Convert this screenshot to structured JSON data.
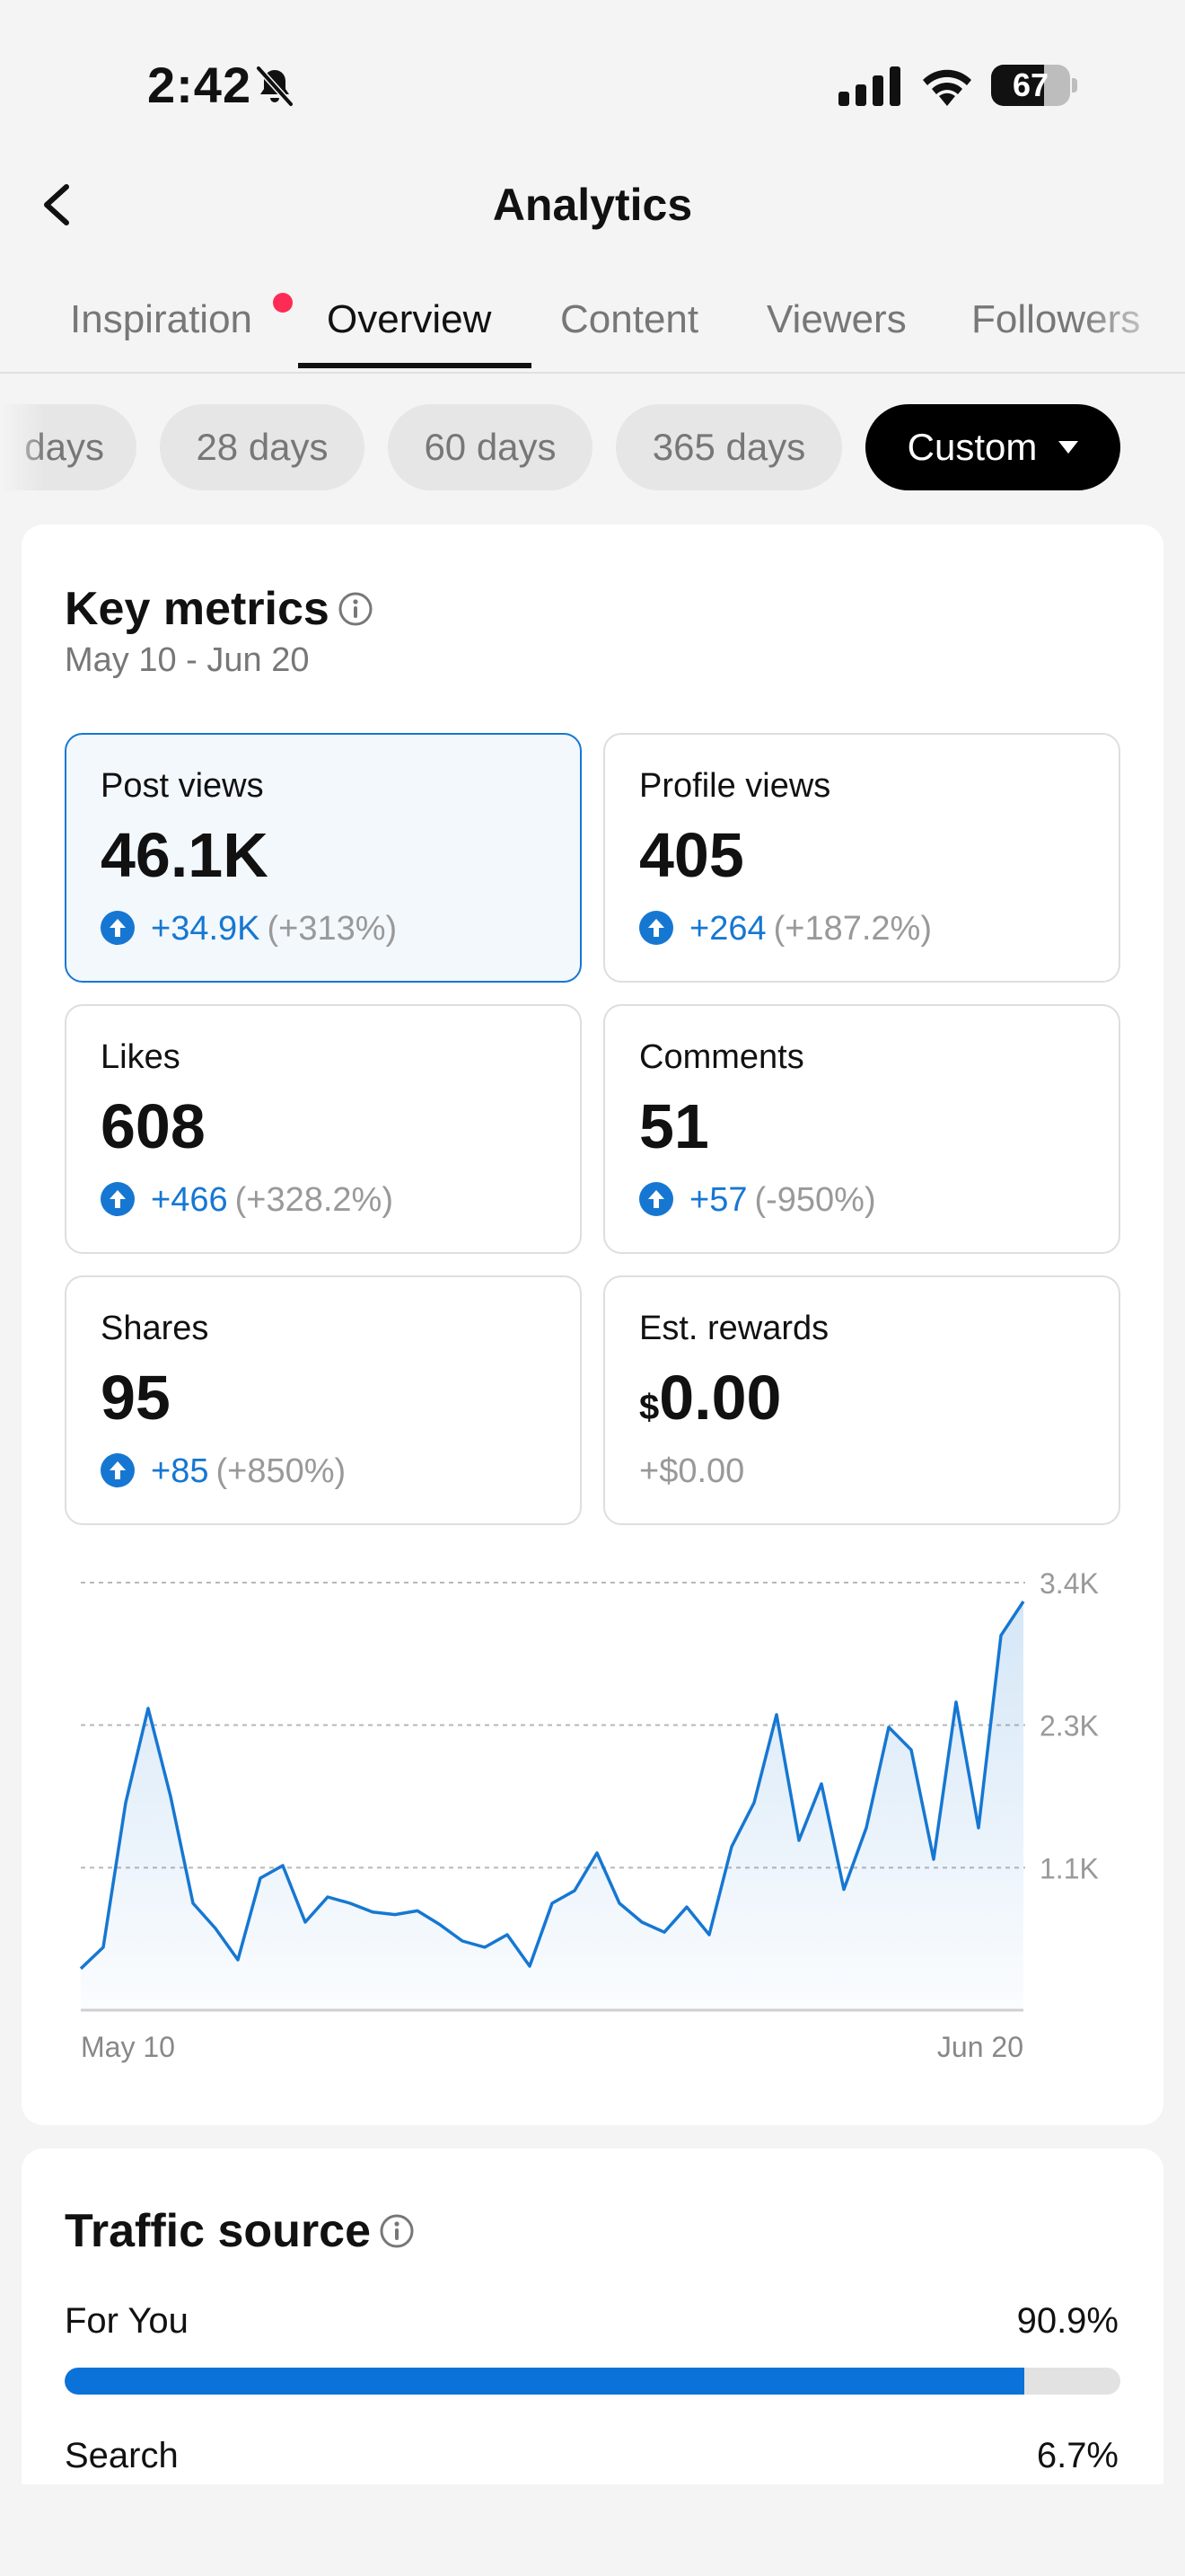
{
  "status_bar": {
    "time": "2:42",
    "battery": "67",
    "battery_level": 0.67
  },
  "header": {
    "title": "Analytics"
  },
  "tabs": [
    {
      "label": "Inspiration",
      "has_dot": true
    },
    {
      "label": "Overview",
      "active": true
    },
    {
      "label": "Content"
    },
    {
      "label": "Viewers"
    },
    {
      "label": "Followers"
    }
  ],
  "date_filters": [
    {
      "label": "days"
    },
    {
      "label": "28 days"
    },
    {
      "label": "60 days"
    },
    {
      "label": "365 days"
    },
    {
      "label": "Custom",
      "active": true
    }
  ],
  "key_metrics": {
    "title": "Key metrics",
    "date_range": "May 10 - Jun 20",
    "metrics": [
      {
        "label": "Post views",
        "value": "46.1K",
        "delta": "+34.9K",
        "delta_pct": "(+313%)",
        "selected": true
      },
      {
        "label": "Profile views",
        "value": "405",
        "delta": "+264",
        "delta_pct": "(+187.2%)"
      },
      {
        "label": "Likes",
        "value": "608",
        "delta": "+466",
        "delta_pct": "(+328.2%)"
      },
      {
        "label": "Comments",
        "value": "51",
        "delta": "+57",
        "delta_pct": "(-950%)"
      },
      {
        "label": "Shares",
        "value": "95",
        "delta": "+85",
        "delta_pct": "(+850%)"
      },
      {
        "label": "Est. rewards",
        "currency": "$",
        "value": "0.00",
        "delta": "+$0.00"
      }
    ]
  },
  "chart_data": {
    "type": "area",
    "x_start_label": "May 10",
    "x_end_label": "Jun 20",
    "y_ticks": [
      "1.1K",
      "2.3K",
      "3.4K"
    ],
    "ylim": [
      0,
      3400
    ],
    "grid": true,
    "values": [
      330,
      500,
      1650,
      2400,
      1700,
      850,
      650,
      400,
      1050,
      1150,
      700,
      900,
      850,
      780,
      760,
      790,
      680,
      550,
      500,
      600,
      350,
      850,
      950,
      1250,
      850,
      700,
      620,
      820,
      600,
      1300,
      1650,
      2350,
      1350,
      1800,
      960,
      1450,
      2250,
      2070,
      1200,
      2450,
      1450,
      2980,
      3250
    ]
  },
  "traffic_source": {
    "title": "Traffic source",
    "items": [
      {
        "label": "For You",
        "value": "90.9%",
        "fraction": 0.909
      },
      {
        "label": "Search",
        "value": "6.7%",
        "fraction": 0.067
      }
    ]
  },
  "colors": {
    "accent": "#1677d2",
    "dot": "#fe2c55",
    "bar": "#0a72d8"
  }
}
